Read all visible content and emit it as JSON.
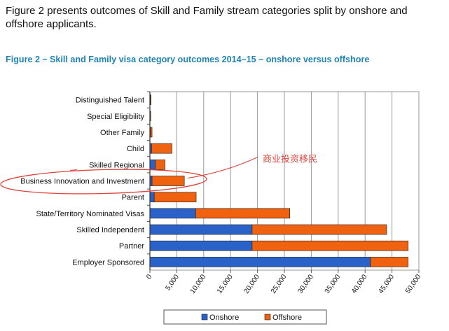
{
  "intro_text": "Figure 2 presents outcomes of Skill and Family stream categories split by onshore and offshore applicants.",
  "figure_title": "Figure 2 – Skill and Family visa category outcomes 2014–15 – onshore versus offshore",
  "annotation_text": "商业投资移民",
  "colors": {
    "onshore": "#2a62c9",
    "offshore": "#f0620f",
    "annotation": "#e0443c",
    "title": "#1f83b4"
  },
  "chart_data": {
    "type": "bar",
    "orientation": "horizontal",
    "stacked": true,
    "categories": [
      "Distinguished Talent",
      "Special Eligibility",
      "Other Family",
      "Child",
      "Skilled Regional",
      "Business Innovation and Investment",
      "Parent",
      "State/Territory Nominated Visas",
      "Skilled Independent",
      "Partner",
      "Employer Sponsored"
    ],
    "series": [
      {
        "name": "Onshore",
        "values": [
          100,
          50,
          100,
          300,
          1000,
          400,
          800,
          8500,
          19000,
          19000,
          41000
        ]
      },
      {
        "name": "Offshore",
        "values": [
          100,
          50,
          300,
          3800,
          1800,
          6000,
          7800,
          17500,
          25000,
          29000,
          7000
        ]
      }
    ],
    "xticks": [
      0,
      5000,
      10000,
      15000,
      20000,
      25000,
      30000,
      35000,
      40000,
      45000,
      50000
    ],
    "xtick_labels": [
      "0",
      "5,000",
      "10,000",
      "15,000",
      "20,000",
      "25,000",
      "30,000",
      "35,000",
      "40,000",
      "45,000",
      "50,000"
    ],
    "xlim": [
      0,
      50000
    ],
    "grid": true,
    "legend_position": "bottom",
    "annotation": {
      "text": "商业投资移民",
      "target_category": "Business Innovation and Investment"
    }
  }
}
